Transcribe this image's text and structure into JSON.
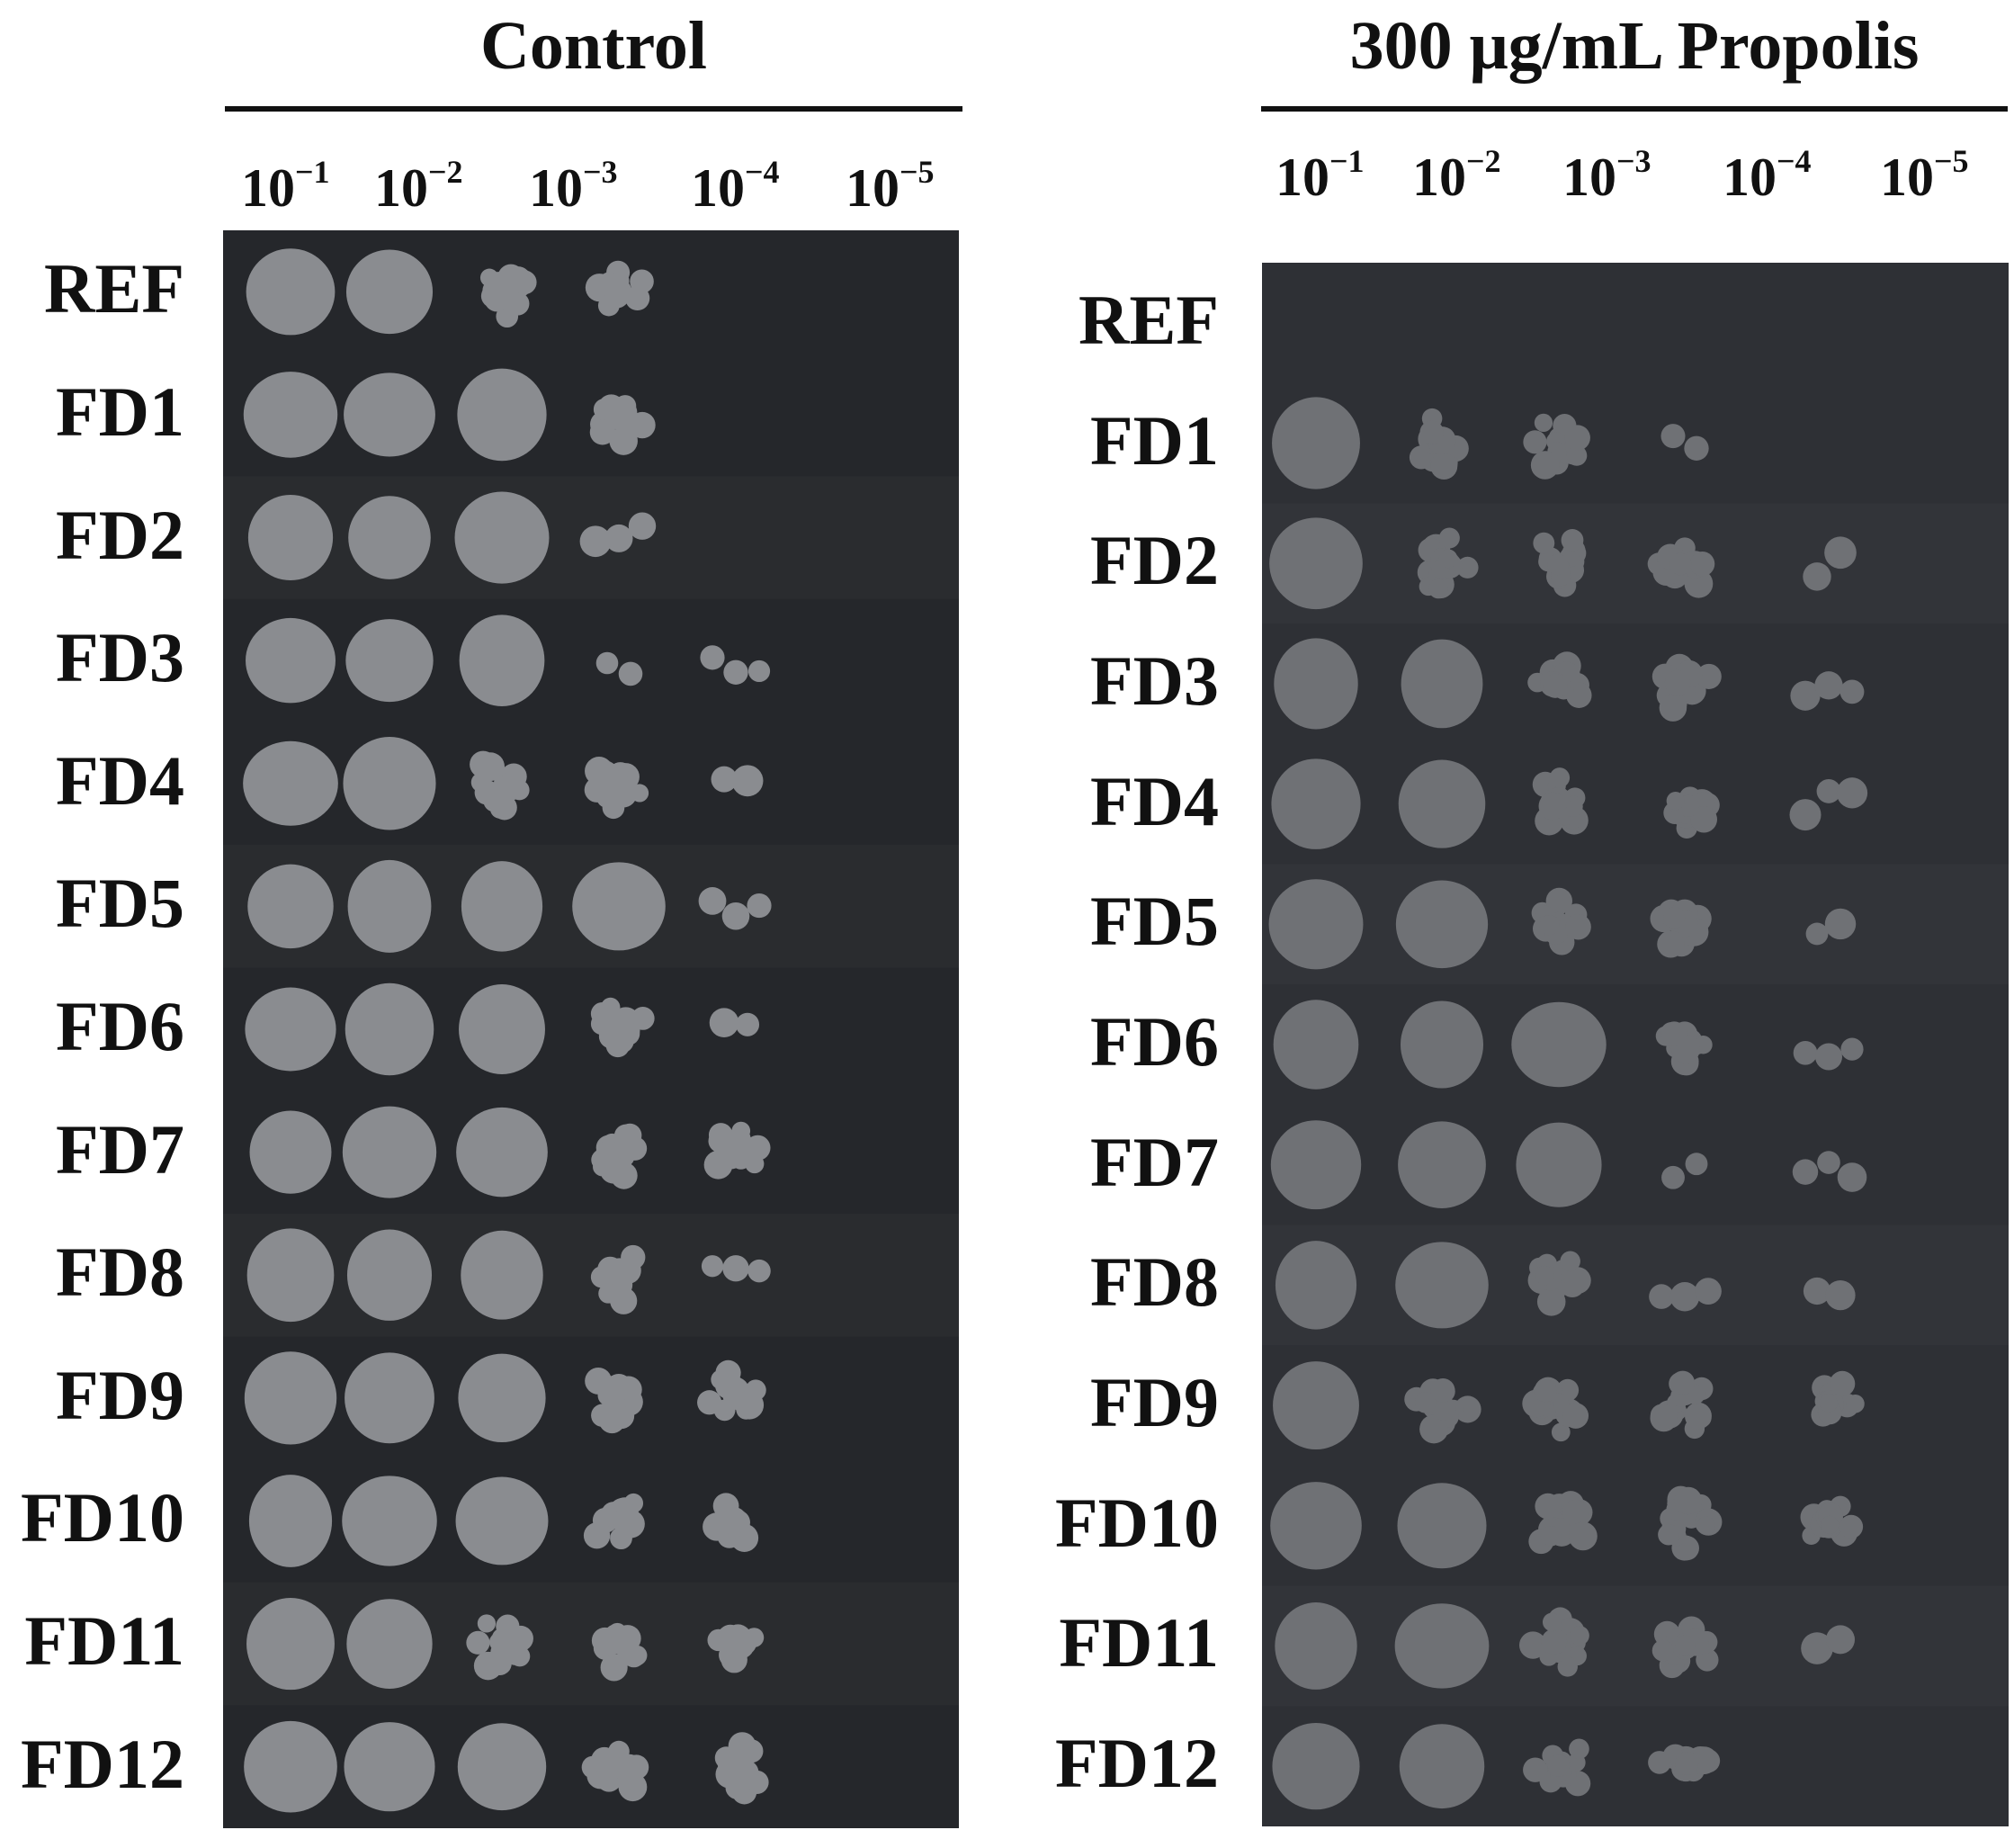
{
  "panels": [
    {
      "id": "control",
      "title": "Control",
      "dilutions": [
        {
          "base": "10",
          "exp": "−1"
        },
        {
          "base": "10",
          "exp": "−2"
        },
        {
          "base": "10",
          "exp": "−3"
        },
        {
          "base": "10",
          "exp": "−4"
        },
        {
          "base": "10",
          "exp": "−5"
        }
      ],
      "rows": [
        "REF",
        "FD1",
        "FD2",
        "FD3",
        "FD4",
        "FD5",
        "FD6",
        "FD7",
        "FD8",
        "FD9",
        "FD10",
        "FD11",
        "FD12"
      ],
      "growth": [
        [
          3,
          3,
          2,
          2,
          0
        ],
        [
          3,
          3,
          3,
          2,
          0
        ],
        [
          3,
          3,
          3,
          1,
          0
        ],
        [
          3,
          3,
          3,
          1,
          1
        ],
        [
          3,
          3,
          2,
          2,
          1
        ],
        [
          3,
          3,
          3,
          3,
          1
        ],
        [
          3,
          3,
          3,
          2,
          1
        ],
        [
          3,
          3,
          3,
          2,
          2
        ],
        [
          3,
          3,
          3,
          2,
          1
        ],
        [
          3,
          3,
          3,
          2,
          2
        ],
        [
          3,
          3,
          3,
          2,
          2
        ],
        [
          3,
          3,
          2,
          2,
          2
        ],
        [
          3,
          3,
          3,
          2,
          2
        ]
      ],
      "colors": {
        "plate": "#25272b",
        "colony": "#8a8c90"
      }
    },
    {
      "id": "propolis",
      "title": "300 μg/mL Propolis",
      "dilutions": [
        {
          "base": "10",
          "exp": "−1"
        },
        {
          "base": "10",
          "exp": "−2"
        },
        {
          "base": "10",
          "exp": "−3"
        },
        {
          "base": "10",
          "exp": "−4"
        },
        {
          "base": "10",
          "exp": "−5"
        }
      ],
      "rows": [
        "REF",
        "FD1",
        "FD2",
        "FD3",
        "FD4",
        "FD5",
        "FD6",
        "FD7",
        "FD8",
        "FD9",
        "FD10",
        "FD11",
        "FD12"
      ],
      "growth": [
        [
          0,
          0,
          0,
          0,
          0
        ],
        [
          3,
          2,
          2,
          1,
          0
        ],
        [
          3,
          2,
          2,
          2,
          1
        ],
        [
          3,
          3,
          2,
          2,
          1
        ],
        [
          3,
          3,
          2,
          2,
          1
        ],
        [
          3,
          3,
          2,
          2,
          1
        ],
        [
          3,
          3,
          3,
          2,
          1
        ],
        [
          3,
          3,
          3,
          1,
          1
        ],
        [
          3,
          3,
          2,
          1,
          1
        ],
        [
          3,
          2,
          2,
          2,
          2
        ],
        [
          3,
          3,
          2,
          2,
          2
        ],
        [
          3,
          3,
          2,
          2,
          1
        ],
        [
          3,
          3,
          2,
          2,
          0
        ]
      ],
      "colors": {
        "plate": "#2e3035",
        "colony": "#6f7175"
      }
    }
  ]
}
